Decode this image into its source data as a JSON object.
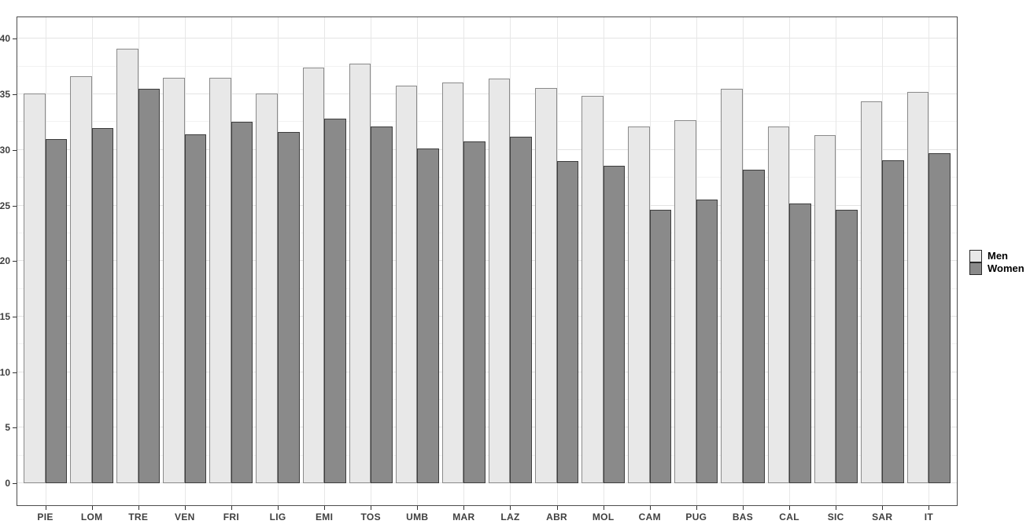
{
  "chart_data": {
    "type": "bar",
    "title": "",
    "xlabel": "",
    "ylabel": "",
    "categories": [
      "PIE",
      "LOM",
      "TRE",
      "VEN",
      "FRI",
      "LIG",
      "EMI",
      "TOS",
      "UMB",
      "MAR",
      "LAZ",
      "ABR",
      "MOL",
      "CAM",
      "PUG",
      "BAS",
      "CAL",
      "SIC",
      "SAR",
      "IT"
    ],
    "series": [
      {
        "name": "Men",
        "fill": "#e8e8e8",
        "border": "#8a8a8a",
        "values": [
          35.1,
          36.6,
          39.1,
          36.5,
          36.5,
          35.1,
          37.4,
          37.8,
          35.8,
          36.1,
          36.4,
          35.6,
          34.9,
          32.1,
          32.7,
          35.5,
          32.1,
          31.3,
          34.4,
          35.2
        ]
      },
      {
        "name": "Women",
        "fill": "#8a8a8a",
        "border": "#3d3d3d",
        "values": [
          31.0,
          32.0,
          35.5,
          31.4,
          32.5,
          31.6,
          32.8,
          32.1,
          30.1,
          30.8,
          31.2,
          29.0,
          28.6,
          24.6,
          25.5,
          28.2,
          25.2,
          24.6,
          29.1,
          29.7
        ]
      }
    ],
    "ylim": [
      0,
      40
    ],
    "y_ticks": [
      0,
      5,
      10,
      15,
      20,
      25,
      30,
      35,
      40
    ],
    "y_minor_ticks": [
      2.5,
      7.5,
      12.5,
      17.5,
      22.5,
      27.5,
      32.5,
      37.5
    ],
    "grid": "major and minor horizontal, vertical at category centers",
    "legend_position": "right-center",
    "legend_labels": [
      "Men",
      "Women"
    ]
  },
  "colors": {
    "background": "#ffffff",
    "panel_border": "#4d4d4d",
    "grid_major": "#e3e3e3",
    "grid_minor": "#f2f2f2",
    "grid_vertical": "#e7e7e7",
    "tick_mark": "#333333",
    "tick_label": "#404040",
    "legend_label": "#000000",
    "men_fill": "#e8e8e8",
    "men_border": "#8a8a8a",
    "women_fill": "#8a8a8a",
    "women_border": "#3d3d3d"
  }
}
